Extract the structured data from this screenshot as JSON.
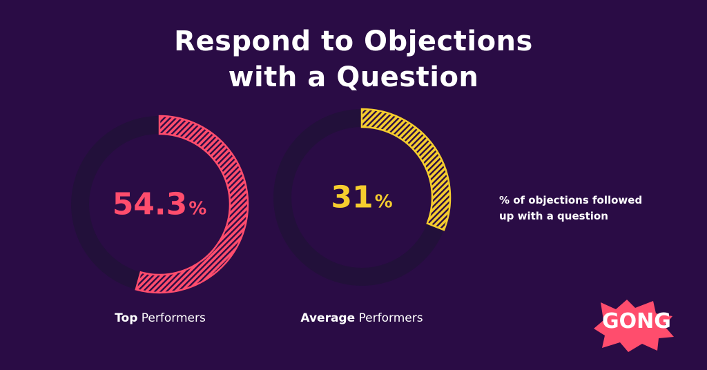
{
  "title": {
    "line1": "Respond to Objections",
    "line2": "with a Question"
  },
  "legend_text": "% of objections followed up with a question",
  "logo": {
    "text": "GONG",
    "color": "#ff4d6d"
  },
  "colors": {
    "background": "#2a0c45",
    "track": "#22103a",
    "top": "#ff4d6d",
    "average": "#f5cd2e"
  },
  "chart_data": [
    {
      "type": "pie",
      "style": "donut",
      "series": [
        {
          "bold": "Top",
          "rest": " Performers",
          "value": 54.3,
          "value_text": "54.3",
          "unit": "%",
          "color": "#ff4d6d"
        }
      ],
      "ylim": [
        0,
        100
      ]
    },
    {
      "type": "pie",
      "style": "donut",
      "series": [
        {
          "bold": "Average",
          "rest": " Performers",
          "value": 31,
          "value_text": "31",
          "unit": "%",
          "color": "#f5cd2e"
        }
      ],
      "ylim": [
        0,
        100
      ]
    }
  ]
}
